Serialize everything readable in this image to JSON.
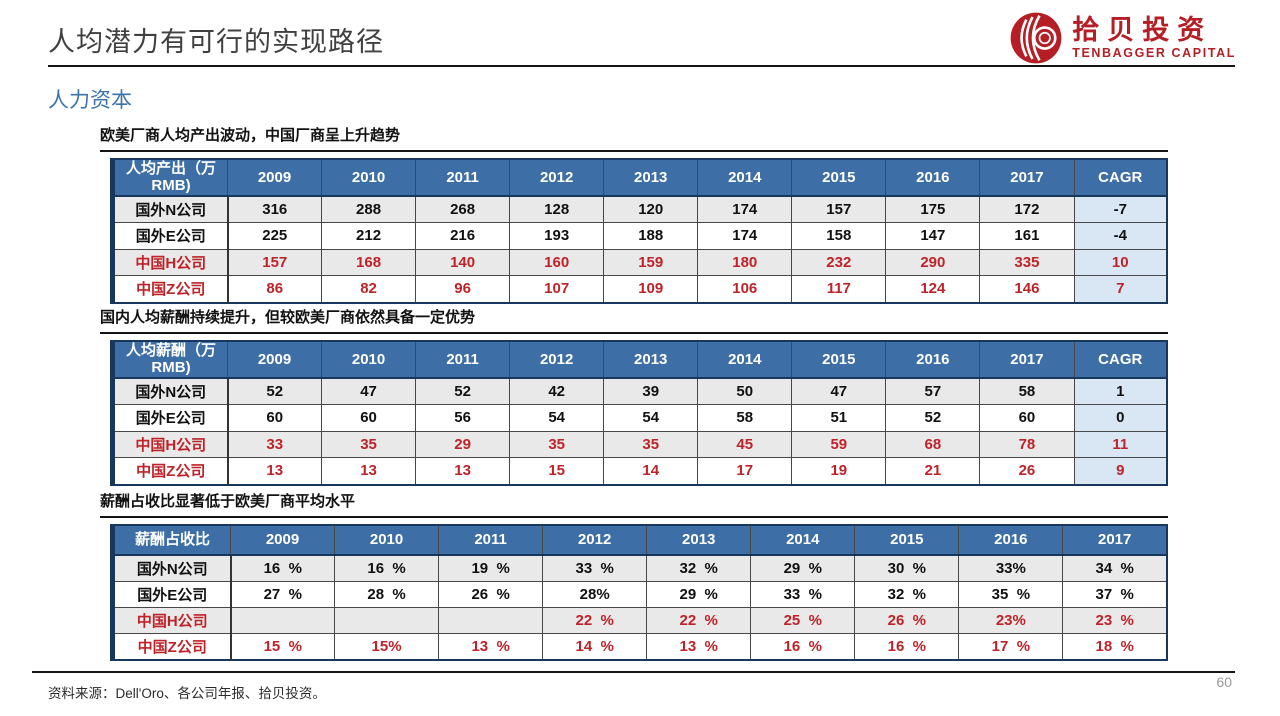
{
  "slide": {
    "title": "人均潜力有可行的实现路径",
    "subtitle": "人力资本",
    "source": "资料来源：Dell'Oro、各公司年报、拾贝投资。",
    "page_number": "60"
  },
  "logo": {
    "cn": "拾贝投资",
    "en": "TENBAGGER CAPITAL",
    "color": "#B41E24"
  },
  "colors": {
    "header_blue": "#3D6EA6",
    "navy_border": "#17375D",
    "stripe_gray": "#E9E9E9",
    "cagr_cell_blue": "#D9E7F5",
    "china_row_red": "#BE2329",
    "subtitle_blue": "#3E74AC"
  },
  "tables": [
    {
      "caption": "欧美厂商人均产出波动，中国厂商呈上升趋势",
      "header_label": "人均产出（万RMB)",
      "columns": [
        "2009",
        "2010",
        "2011",
        "2012",
        "2013",
        "2014",
        "2015",
        "2016",
        "2017"
      ],
      "cagr_label": "CAGR",
      "has_cagr": true,
      "rows": [
        {
          "label": "国外N公司",
          "type": "foreign",
          "values": [
            "316",
            "288",
            "268",
            "128",
            "120",
            "174",
            "157",
            "175",
            "172"
          ],
          "cagr": "-7"
        },
        {
          "label": "国外E公司",
          "type": "foreign",
          "values": [
            "225",
            "212",
            "216",
            "193",
            "188",
            "174",
            "158",
            "147",
            "161"
          ],
          "cagr": "-4"
        },
        {
          "label": "中国H公司",
          "type": "china",
          "values": [
            "157",
            "168",
            "140",
            "160",
            "159",
            "180",
            "232",
            "290",
            "335"
          ],
          "cagr": "10"
        },
        {
          "label": "中国Z公司",
          "type": "china",
          "values": [
            "86",
            "82",
            "96",
            "107",
            "109",
            "106",
            "117",
            "124",
            "146"
          ],
          "cagr": "7"
        }
      ]
    },
    {
      "caption": "国内人均薪酬持续提升，但较欧美厂商依然具备一定优势",
      "header_label": "人均薪酬（万RMB)",
      "columns": [
        "2009",
        "2010",
        "2011",
        "2012",
        "2013",
        "2014",
        "2015",
        "2016",
        "2017"
      ],
      "cagr_label": "CAGR",
      "has_cagr": true,
      "rows": [
        {
          "label": "国外N公司",
          "type": "foreign",
          "values": [
            "52",
            "47",
            "52",
            "42",
            "39",
            "50",
            "47",
            "57",
            "58"
          ],
          "cagr": "1"
        },
        {
          "label": "国外E公司",
          "type": "foreign",
          "values": [
            "60",
            "60",
            "56",
            "54",
            "54",
            "58",
            "51",
            "52",
            "60"
          ],
          "cagr": "0"
        },
        {
          "label": "中国H公司",
          "type": "china",
          "values": [
            "33",
            "35",
            "29",
            "35",
            "35",
            "45",
            "59",
            "68",
            "78"
          ],
          "cagr": "11"
        },
        {
          "label": "中国Z公司",
          "type": "china",
          "values": [
            "13",
            "13",
            "13",
            "15",
            "14",
            "17",
            "19",
            "21",
            "26"
          ],
          "cagr": "9"
        }
      ]
    },
    {
      "caption": "薪酬占收比显著低于欧美厂商平均水平",
      "header_label": "薪酬占收比",
      "columns": [
        "2009",
        "2010",
        "2011",
        "2012",
        "2013",
        "2014",
        "2015",
        "2016",
        "2017"
      ],
      "cagr_label": "CAGR",
      "has_cagr": false,
      "rows": [
        {
          "label": "国外N公司",
          "type": "foreign",
          "values": [
            "16  %",
            "16  %",
            "19  %",
            "33  %",
            "32  %",
            "29  %",
            "30  %",
            "33%",
            "34  %"
          ]
        },
        {
          "label": "国外E公司",
          "type": "foreign",
          "values": [
            "27  %",
            "28  %",
            "26  %",
            "28%",
            "29  %",
            "33  %",
            "32  %",
            "35  %",
            "37  %"
          ]
        },
        {
          "label": "中国H公司",
          "type": "china",
          "values": [
            "",
            "",
            "",
            "22  %",
            "22  %",
            "25  %",
            "26  %",
            "23%",
            "23  %"
          ]
        },
        {
          "label": "中国Z公司",
          "type": "china",
          "values": [
            "15  %",
            "15%",
            "13  %",
            "14  %",
            "13  %",
            "16  %",
            "16  %",
            "17  %",
            "18  %"
          ]
        }
      ]
    }
  ]
}
